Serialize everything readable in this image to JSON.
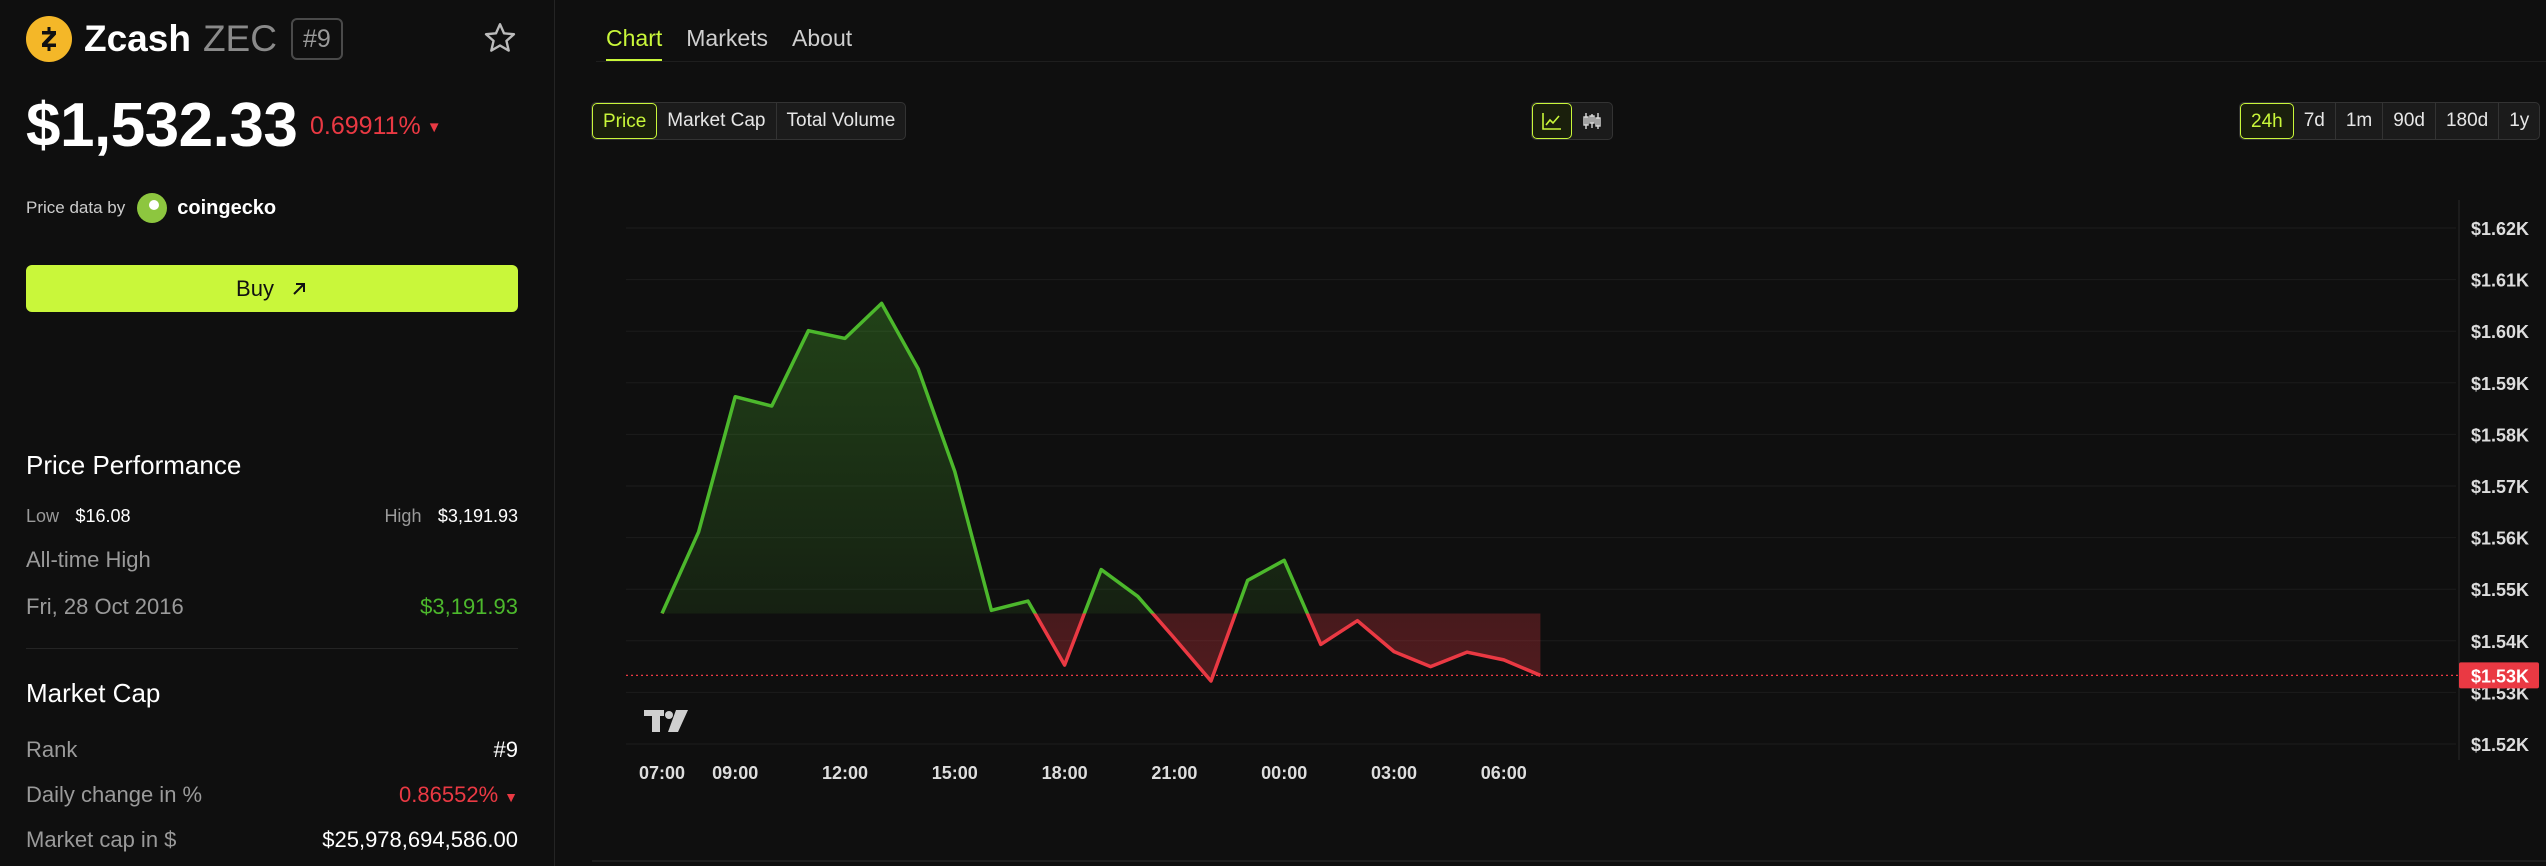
{
  "coin": {
    "name": "Zcash",
    "symbol": "ZEC",
    "rank": "#9",
    "price": "$1,532.33",
    "change": "0.69911%",
    "change_arrow": "▼"
  },
  "source": {
    "label": "Price data by",
    "name": "coingecko"
  },
  "buy": {
    "label": "Buy"
  },
  "performance": {
    "title": "Price Performance",
    "low_label": "Low",
    "low_value": "$16.08",
    "high_label": "High",
    "high_value": "$3,191.93",
    "ath_label": "All-time High",
    "ath_date": "Fri, 28 Oct 2016",
    "ath_value": "$3,191.93"
  },
  "market_cap": {
    "title": "Market Cap",
    "rank_label": "Rank",
    "rank_value": "#9",
    "daily_label": "Daily change in %",
    "daily_value": "0.86552%",
    "daily_arrow": "▼",
    "cap_label": "Market cap in $",
    "cap_value": "$25,978,694,586.00"
  },
  "tabs": [
    {
      "label": "Chart",
      "active": true
    },
    {
      "label": "Markets",
      "active": false
    },
    {
      "label": "About",
      "active": false
    }
  ],
  "metric_buttons": [
    {
      "label": "Price",
      "active": true
    },
    {
      "label": "Market Cap",
      "active": false
    },
    {
      "label": "Total Volume",
      "active": false
    }
  ],
  "chart_type_buttons": [
    {
      "icon": "line-chart-icon",
      "active": true
    },
    {
      "icon": "candlestick-icon",
      "active": false
    }
  ],
  "range_buttons": [
    {
      "label": "24h",
      "active": true
    },
    {
      "label": "7d",
      "active": false
    },
    {
      "label": "1m",
      "active": false
    },
    {
      "label": "90d",
      "active": false
    },
    {
      "label": "180d",
      "active": false
    },
    {
      "label": "1y",
      "active": false
    }
  ],
  "colors": {
    "accent": "#c9f73a",
    "up": "#4cb82c",
    "down": "#ea3943",
    "background": "#0f0f0f",
    "zcash": "#f4b728"
  },
  "chart_data": {
    "type": "line",
    "x_labels": [
      "07:00",
      "09:00",
      "12:00",
      "15:00",
      "18:00",
      "21:00",
      "00:00",
      "03:00",
      "06:00"
    ],
    "x": [
      "07:00",
      "08:00",
      "09:00",
      "10:00",
      "11:00",
      "12:00",
      "13:00",
      "14:00",
      "15:00",
      "16:00",
      "17:00",
      "18:00",
      "19:00",
      "20:00",
      "21:00",
      "22:00",
      "23:00",
      "00:00",
      "01:00",
      "02:00",
      "03:00",
      "04:00",
      "05:00",
      "06:00",
      "07:00"
    ],
    "values": [
      1545.3,
      1561.1,
      1587.3,
      1585.5,
      1600.1,
      1598.6,
      1605.4,
      1592.7,
      1572.8,
      1545.9,
      1547.7,
      1535.3,
      1553.8,
      1548.6,
      1540.5,
      1532.2,
      1551.7,
      1555.6,
      1539.3,
      1543.9,
      1537.9,
      1535.0,
      1537.8,
      1536.3,
      1533.3
    ],
    "baseline": 1545.3,
    "current_label": "$1.53K",
    "y_ticks": [
      "$1.62K",
      "$1.61K",
      "$1.60K",
      "$1.59K",
      "$1.58K",
      "$1.57K",
      "$1.56K",
      "$1.55K",
      "$1.54K",
      "$1.53K",
      "$1.52K"
    ],
    "ylim": [
      1520,
      1620
    ]
  }
}
